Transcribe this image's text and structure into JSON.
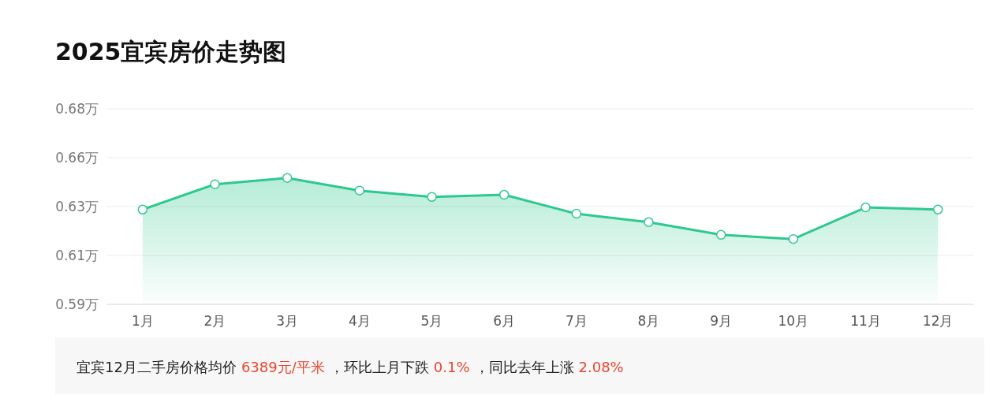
{
  "chart_data": {
    "type": "area",
    "title": "2025宜宾房价走势图",
    "categories": [
      "1月",
      "2月",
      "3月",
      "4月",
      "5月",
      "6月",
      "7月",
      "8月",
      "9月",
      "10月",
      "11月",
      "12月"
    ],
    "series": [
      {
        "color": "#2ec98f",
        "values": [
          0.633,
          0.645,
          0.648,
          0.642,
          0.639,
          0.64,
          0.631,
          0.627,
          0.621,
          0.619,
          0.634,
          0.633
        ]
      }
    ],
    "ylim": [
      0.588,
      0.6808
    ],
    "yticks": [
      {
        "value": 0.588,
        "label": "0.59万"
      },
      {
        "value": 0.6112,
        "label": "0.61万"
      },
      {
        "value": 0.6344,
        "label": "0.63万"
      },
      {
        "value": 0.6576,
        "label": "0.66万"
      },
      {
        "value": 0.6808,
        "label": "0.68万"
      }
    ],
    "grid": "y",
    "marker": "circle",
    "annotations": [
      "宜宾12月二手房价格均价",
      "6389元/平米",
      "，环比上月下跌",
      "0.1%",
      "，同比去年上涨",
      "2.08%"
    ]
  }
}
